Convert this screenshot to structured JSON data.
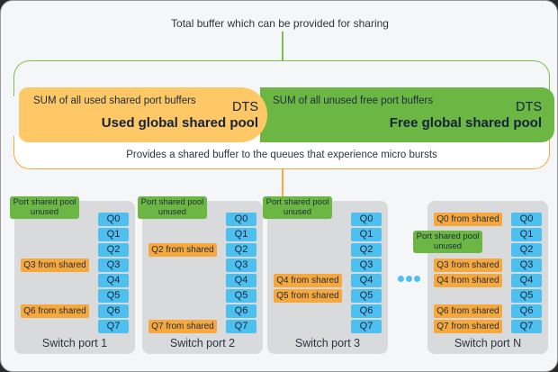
{
  "title": "Total buffer which can be provided for sharing",
  "used_pool": {
    "sum": "SUM of all used shared port buffers",
    "tag": "DTS",
    "name": "Used global shared pool",
    "color": "#fdc865"
  },
  "free_pool": {
    "sum": "SUM of all unused free port buffers",
    "tag": "DTS",
    "name": "Free global shared pool",
    "color": "#6cb744"
  },
  "description": "Provides a shared buffer to the queues that experience micro bursts",
  "unused_label": "Port shared pool unused",
  "shared_suffix": " from shared",
  "queues": [
    "Q0",
    "Q1",
    "Q2",
    "Q3",
    "Q4",
    "Q5",
    "Q6",
    "Q7"
  ],
  "ports": [
    {
      "name": "Switch port 1",
      "shared": [
        3,
        6
      ]
    },
    {
      "name": "Switch port 2",
      "shared": [
        2,
        7
      ]
    },
    {
      "name": "Switch port 3",
      "shared": [
        4,
        5
      ]
    },
    {
      "name": "Switch port N",
      "shared": [
        0,
        3,
        4,
        6,
        7
      ]
    }
  ],
  "ellipsis_icon": "three-dots"
}
